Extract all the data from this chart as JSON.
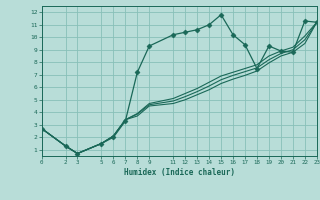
{
  "title": "",
  "xlabel": "Humidex (Indice chaleur)",
  "ylabel": "",
  "bg_color": "#b8ddd8",
  "grid_color": "#88c0b8",
  "line_color": "#1a6858",
  "marker_color": "#1a6858",
  "xlim": [
    0,
    23
  ],
  "ylim": [
    0.5,
    12.5
  ],
  "xticks": [
    0,
    2,
    3,
    5,
    6,
    7,
    8,
    9,
    11,
    12,
    13,
    14,
    15,
    16,
    17,
    18,
    19,
    20,
    21,
    22,
    23
  ],
  "yticks": [
    1,
    2,
    3,
    4,
    5,
    6,
    7,
    8,
    9,
    10,
    11,
    12
  ],
  "lines": [
    {
      "x": [
        0,
        2,
        3,
        5,
        6,
        7,
        8,
        9,
        11,
        12,
        13,
        14,
        15,
        16,
        17,
        18,
        19,
        20,
        21,
        22,
        23
      ],
      "y": [
        2.7,
        1.3,
        0.7,
        1.5,
        2.0,
        3.3,
        7.2,
        9.3,
        10.2,
        10.4,
        10.6,
        11.0,
        11.8,
        10.2,
        9.4,
        7.5,
        9.3,
        8.9,
        8.8,
        11.3,
        11.2
      ],
      "has_markers": true
    },
    {
      "x": [
        0,
        2,
        3,
        5,
        6,
        7,
        8,
        9,
        11,
        12,
        13,
        14,
        15,
        16,
        17,
        18,
        19,
        20,
        21,
        22,
        23
      ],
      "y": [
        2.7,
        1.3,
        0.7,
        1.5,
        2.1,
        3.4,
        3.9,
        4.7,
        5.1,
        5.5,
        5.9,
        6.4,
        6.9,
        7.2,
        7.5,
        7.8,
        8.5,
        8.9,
        9.2,
        10.1,
        11.2
      ],
      "has_markers": false
    },
    {
      "x": [
        0,
        2,
        3,
        5,
        6,
        7,
        8,
        9,
        11,
        12,
        13,
        14,
        15,
        16,
        17,
        18,
        19,
        20,
        21,
        22,
        23
      ],
      "y": [
        2.7,
        1.3,
        0.7,
        1.5,
        2.1,
        3.4,
        3.85,
        4.6,
        4.9,
        5.25,
        5.65,
        6.1,
        6.6,
        6.95,
        7.25,
        7.55,
        8.2,
        8.7,
        9.0,
        9.8,
        11.2
      ],
      "has_markers": false
    },
    {
      "x": [
        0,
        2,
        3,
        5,
        6,
        7,
        8,
        9,
        11,
        12,
        13,
        14,
        15,
        16,
        17,
        18,
        19,
        20,
        21,
        22,
        23
      ],
      "y": [
        2.7,
        1.3,
        0.7,
        1.5,
        2.1,
        3.4,
        3.7,
        4.5,
        4.7,
        5.0,
        5.4,
        5.8,
        6.3,
        6.65,
        6.95,
        7.3,
        7.95,
        8.5,
        8.8,
        9.5,
        11.2
      ],
      "has_markers": false
    }
  ]
}
